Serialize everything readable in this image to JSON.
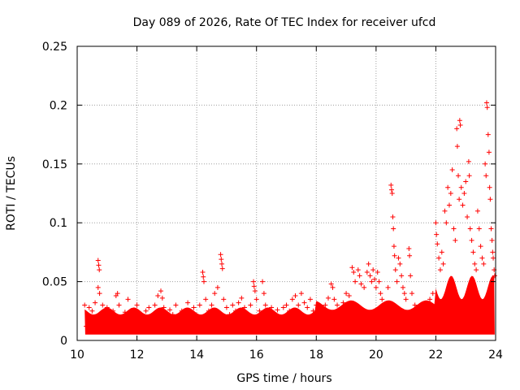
{
  "chart_data": {
    "type": "scatter",
    "title": "Day 089 of 2026, Rate Of TEC Index for receiver ufcd",
    "xlabel": "GPS time / hours",
    "ylabel": "ROTI / TECUs",
    "xlim": [
      10,
      24
    ],
    "ylim": [
      0,
      0.25
    ],
    "xticks": [
      10,
      12,
      14,
      16,
      18,
      20,
      22,
      24
    ],
    "xtick_labels": [
      "10",
      "12",
      "14",
      "16",
      "18",
      "20",
      "22",
      "24"
    ],
    "yticks": [
      0,
      0.05,
      0.1,
      0.15,
      0.2,
      0.25
    ],
    "ytick_labels": [
      "0",
      "0.05",
      "0.1",
      "0.15",
      "0.2",
      "0.25"
    ],
    "grid": true,
    "marker": "+",
    "color": "#ff0000",
    "series": [
      {
        "name": "ROTI",
        "points": [
          [
            10.25,
            0.03
          ],
          [
            10.3,
            0.012
          ],
          [
            10.35,
            0.022
          ],
          [
            10.4,
            0.028
          ],
          [
            10.45,
            0.015
          ],
          [
            10.5,
            0.025
          ],
          [
            10.55,
            0.018
          ],
          [
            10.6,
            0.032
          ],
          [
            10.7,
            0.068
          ],
          [
            10.72,
            0.064
          ],
          [
            10.74,
            0.06
          ],
          [
            10.7,
            0.045
          ],
          [
            10.75,
            0.04
          ],
          [
            10.8,
            0.022
          ],
          [
            10.85,
            0.03
          ],
          [
            10.9,
            0.015
          ],
          [
            11.0,
            0.028
          ],
          [
            11.1,
            0.02
          ],
          [
            11.2,
            0.025
          ],
          [
            11.3,
            0.038
          ],
          [
            11.35,
            0.04
          ],
          [
            11.4,
            0.03
          ],
          [
            11.5,
            0.018
          ],
          [
            11.6,
            0.024
          ],
          [
            11.7,
            0.035
          ],
          [
            11.8,
            0.02
          ],
          [
            11.9,
            0.026
          ],
          [
            12.0,
            0.03
          ],
          [
            12.1,
            0.022
          ],
          [
            12.2,
            0.018
          ],
          [
            12.3,
            0.025
          ],
          [
            12.4,
            0.028
          ],
          [
            12.5,
            0.02
          ],
          [
            12.6,
            0.03
          ],
          [
            12.7,
            0.038
          ],
          [
            12.8,
            0.042
          ],
          [
            12.85,
            0.036
          ],
          [
            12.9,
            0.028
          ],
          [
            13.0,
            0.02
          ],
          [
            13.1,
            0.026
          ],
          [
            13.2,
            0.022
          ],
          [
            13.3,
            0.03
          ],
          [
            13.4,
            0.018
          ],
          [
            13.5,
            0.025
          ],
          [
            13.6,
            0.022
          ],
          [
            13.7,
            0.032
          ],
          [
            13.8,
            0.024
          ],
          [
            13.9,
            0.028
          ],
          [
            14.0,
            0.02
          ],
          [
            14.1,
            0.03
          ],
          [
            14.2,
            0.058
          ],
          [
            14.22,
            0.054
          ],
          [
            14.24,
            0.05
          ],
          [
            14.3,
            0.035
          ],
          [
            14.4,
            0.025
          ],
          [
            14.5,
            0.03
          ],
          [
            14.6,
            0.04
          ],
          [
            14.7,
            0.045
          ],
          [
            14.8,
            0.073
          ],
          [
            14.82,
            0.069
          ],
          [
            14.84,
            0.065
          ],
          [
            14.86,
            0.061
          ],
          [
            14.9,
            0.035
          ],
          [
            15.0,
            0.028
          ],
          [
            15.1,
            0.022
          ],
          [
            15.2,
            0.03
          ],
          [
            15.3,
            0.025
          ],
          [
            15.4,
            0.032
          ],
          [
            15.5,
            0.036
          ],
          [
            15.6,
            0.028
          ],
          [
            15.7,
            0.022
          ],
          [
            15.8,
            0.03
          ],
          [
            15.9,
            0.05
          ],
          [
            15.92,
            0.046
          ],
          [
            15.95,
            0.042
          ],
          [
            16.0,
            0.035
          ],
          [
            16.1,
            0.025
          ],
          [
            16.2,
            0.05
          ],
          [
            16.25,
            0.04
          ],
          [
            16.3,
            0.03
          ],
          [
            16.4,
            0.022
          ],
          [
            16.5,
            0.028
          ],
          [
            16.6,
            0.02
          ],
          [
            16.7,
            0.026
          ],
          [
            16.8,
            0.018
          ],
          [
            16.9,
            0.028
          ],
          [
            17.0,
            0.03
          ],
          [
            17.1,
            0.025
          ],
          [
            17.2,
            0.035
          ],
          [
            17.3,
            0.038
          ],
          [
            17.4,
            0.03
          ],
          [
            17.5,
            0.04
          ],
          [
            17.6,
            0.032
          ],
          [
            17.7,
            0.028
          ],
          [
            17.8,
            0.035
          ],
          [
            17.9,
            0.025
          ],
          [
            18.0,
            0.03
          ],
          [
            18.1,
            0.028
          ],
          [
            18.2,
            0.025
          ],
          [
            18.3,
            0.03
          ],
          [
            18.4,
            0.036
          ],
          [
            18.5,
            0.048
          ],
          [
            18.55,
            0.045
          ],
          [
            18.6,
            0.035
          ],
          [
            18.7,
            0.03
          ],
          [
            18.8,
            0.025
          ],
          [
            18.9,
            0.032
          ],
          [
            19.0,
            0.04
          ],
          [
            19.1,
            0.038
          ],
          [
            19.2,
            0.062
          ],
          [
            19.25,
            0.058
          ],
          [
            19.3,
            0.05
          ],
          [
            19.4,
            0.06
          ],
          [
            19.45,
            0.055
          ],
          [
            19.5,
            0.048
          ],
          [
            19.6,
            0.045
          ],
          [
            19.7,
            0.058
          ],
          [
            19.75,
            0.065
          ],
          [
            19.8,
            0.055
          ],
          [
            19.85,
            0.05
          ],
          [
            19.9,
            0.06
          ],
          [
            19.95,
            0.052
          ],
          [
            20.0,
            0.045
          ],
          [
            20.05,
            0.058
          ],
          [
            20.1,
            0.05
          ],
          [
            20.15,
            0.04
          ],
          [
            20.2,
            0.035
          ],
          [
            20.3,
            0.03
          ],
          [
            20.4,
            0.045
          ],
          [
            20.5,
            0.132
          ],
          [
            20.52,
            0.128
          ],
          [
            20.54,
            0.125
          ],
          [
            20.56,
            0.105
          ],
          [
            20.58,
            0.095
          ],
          [
            20.6,
            0.08
          ],
          [
            20.62,
            0.072
          ],
          [
            20.65,
            0.06
          ],
          [
            20.7,
            0.05
          ],
          [
            20.75,
            0.07
          ],
          [
            20.8,
            0.065
          ],
          [
            20.85,
            0.055
          ],
          [
            20.9,
            0.045
          ],
          [
            20.95,
            0.04
          ],
          [
            21.0,
            0.035
          ],
          [
            21.1,
            0.078
          ],
          [
            21.12,
            0.072
          ],
          [
            21.15,
            0.055
          ],
          [
            21.2,
            0.04
          ],
          [
            21.3,
            0.03
          ],
          [
            21.4,
            0.028
          ],
          [
            21.5,
            0.025
          ],
          [
            21.6,
            0.03
          ],
          [
            21.7,
            0.028
          ],
          [
            21.8,
            0.035
          ],
          [
            21.9,
            0.04
          ],
          [
            22.0,
            0.1
          ],
          [
            22.02,
            0.09
          ],
          [
            22.05,
            0.082
          ],
          [
            22.1,
            0.07
          ],
          [
            22.15,
            0.06
          ],
          [
            22.2,
            0.075
          ],
          [
            22.25,
            0.065
          ],
          [
            22.3,
            0.11
          ],
          [
            22.35,
            0.1
          ],
          [
            22.4,
            0.13
          ],
          [
            22.45,
            0.115
          ],
          [
            22.5,
            0.125
          ],
          [
            22.55,
            0.145
          ],
          [
            22.6,
            0.095
          ],
          [
            22.65,
            0.085
          ],
          [
            22.7,
            0.18
          ],
          [
            22.72,
            0.165
          ],
          [
            22.75,
            0.14
          ],
          [
            22.78,
            0.12
          ],
          [
            22.8,
            0.187
          ],
          [
            22.82,
            0.183
          ],
          [
            22.85,
            0.13
          ],
          [
            22.9,
            0.115
          ],
          [
            22.95,
            0.125
          ],
          [
            23.0,
            0.135
          ],
          [
            23.05,
            0.105
          ],
          [
            23.1,
            0.152
          ],
          [
            23.12,
            0.14
          ],
          [
            23.15,
            0.095
          ],
          [
            23.2,
            0.085
          ],
          [
            23.25,
            0.075
          ],
          [
            23.3,
            0.065
          ],
          [
            23.35,
            0.06
          ],
          [
            23.4,
            0.11
          ],
          [
            23.45,
            0.095
          ],
          [
            23.5,
            0.08
          ],
          [
            23.55,
            0.07
          ],
          [
            23.6,
            0.065
          ],
          [
            23.65,
            0.15
          ],
          [
            23.68,
            0.14
          ],
          [
            23.7,
            0.202
          ],
          [
            23.72,
            0.198
          ],
          [
            23.75,
            0.175
          ],
          [
            23.78,
            0.16
          ],
          [
            23.8,
            0.13
          ],
          [
            23.82,
            0.12
          ],
          [
            23.85,
            0.095
          ],
          [
            23.88,
            0.085
          ],
          [
            23.9,
            0.075
          ],
          [
            23.92,
            0.07
          ],
          [
            23.95,
            0.06
          ],
          [
            23.97,
            0.055
          ]
        ]
      }
    ]
  }
}
